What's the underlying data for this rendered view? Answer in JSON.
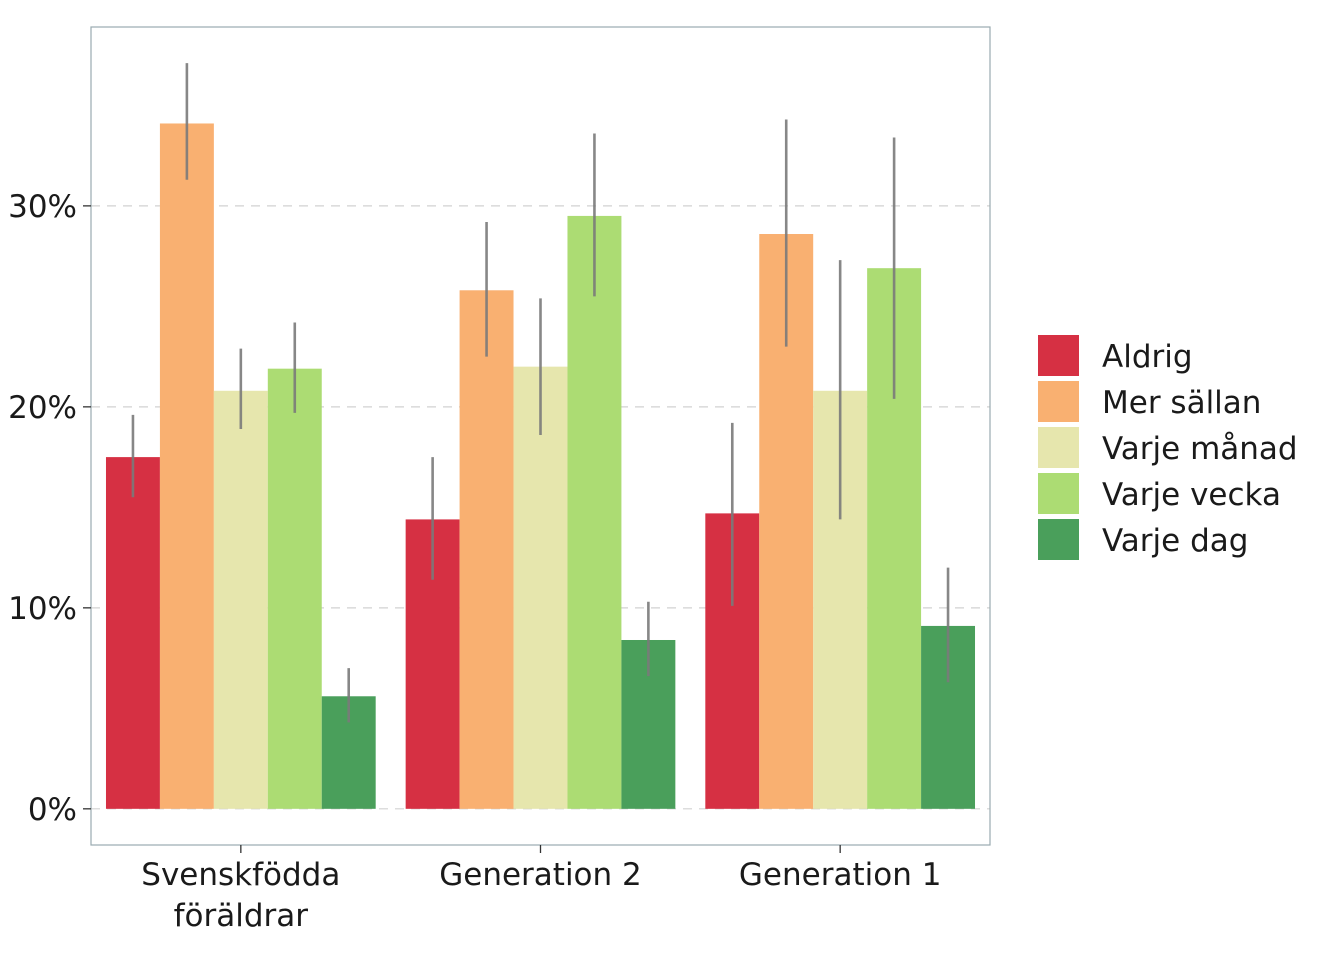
{
  "chart_data": {
    "type": "bar",
    "categories": [
      [
        "Svenskfödda",
        "föräldrar"
      ],
      [
        "Generation 2"
      ],
      [
        "Generation 1"
      ]
    ],
    "series": [
      {
        "name": "Aldrig",
        "color": "#d63043",
        "values": [
          17.5,
          14.4,
          14.7
        ],
        "err_low": [
          15.5,
          11.4,
          10.1
        ],
        "err_high": [
          19.6,
          17.5,
          19.2
        ]
      },
      {
        "name": "Mer sällan",
        "color": "#f9b071",
        "values": [
          34.1,
          25.8,
          28.6
        ],
        "err_low": [
          31.3,
          22.5,
          23.0
        ],
        "err_high": [
          37.1,
          29.2,
          34.3
        ]
      },
      {
        "name": "Varje månad",
        "color": "#e6e6ad",
        "values": [
          20.8,
          22.0,
          20.8
        ],
        "err_low": [
          18.9,
          18.6,
          14.4
        ],
        "err_high": [
          22.9,
          25.4,
          27.3
        ]
      },
      {
        "name": "Varje vecka",
        "color": "#acdc73",
        "values": [
          21.9,
          29.5,
          26.9
        ],
        "err_low": [
          19.7,
          25.5,
          20.4
        ],
        "err_high": [
          24.2,
          33.6,
          33.4
        ]
      },
      {
        "name": "Varje dag",
        "color": "#4a9f5b",
        "values": [
          5.6,
          8.4,
          9.1
        ],
        "err_low": [
          4.3,
          6.6,
          6.3
        ],
        "err_high": [
          7.0,
          10.3,
          12.0
        ]
      }
    ],
    "yticks": [
      0,
      10,
      20,
      30
    ],
    "ytick_labels": [
      "0%",
      "10%",
      "20%",
      "30%"
    ],
    "ylim": [
      -1.8,
      38.9
    ],
    "grid": "horizontal dashed",
    "legend_position": "right",
    "title": "",
    "xlabel": "",
    "ylabel": ""
  }
}
